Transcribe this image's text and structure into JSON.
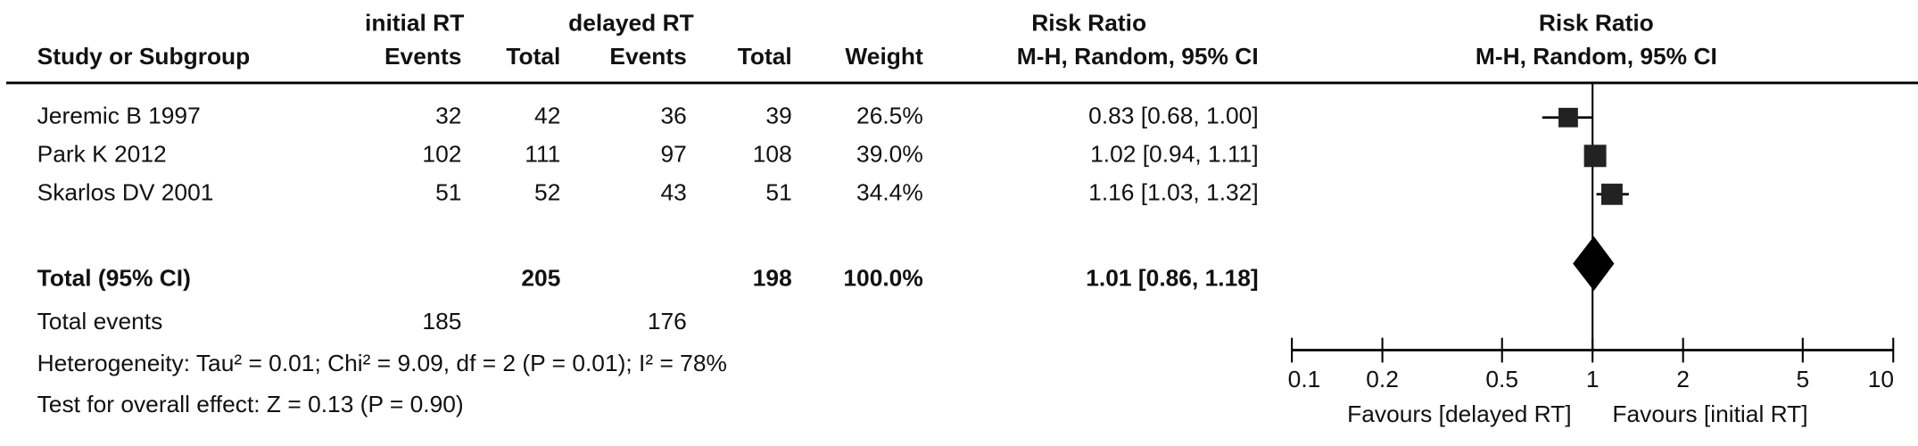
{
  "header": {
    "group1": "initial RT",
    "group2": "delayed RT",
    "effect_col_title": "Risk Ratio",
    "effect_col_method": "M-H, Random, 95% CI",
    "plot_title": "Risk Ratio",
    "plot_method": "M-H, Random, 95% CI",
    "study_col": "Study or Subgroup",
    "events1": "Events",
    "total1": "Total",
    "events2": "Events",
    "total2": "Total",
    "weight": "Weight"
  },
  "studies": [
    {
      "name": "Jeremic B 1997",
      "events1": "32",
      "total1": "42",
      "events2": "36",
      "total2": "39",
      "weight": "26.5%",
      "ci_text": "0.83 [0.68, 1.00]"
    },
    {
      "name": "Park K 2012",
      "events1": "102",
      "total1": "111",
      "events2": "97",
      "total2": "108",
      "weight": "39.0%",
      "ci_text": "1.02 [0.94, 1.11]"
    },
    {
      "name": "Skarlos DV 2001",
      "events1": "51",
      "total1": "52",
      "events2": "43",
      "total2": "51",
      "weight": "34.4%",
      "ci_text": "1.16 [1.03, 1.32]"
    }
  ],
  "total": {
    "label": "Total (95% CI)",
    "total1": "205",
    "total2": "198",
    "weight": "100.0%",
    "ci_text": "1.01 [0.86, 1.18]"
  },
  "total_events": {
    "label": "Total events",
    "events1": "185",
    "events2": "176"
  },
  "heterogeneity": "Heterogeneity: Tau² = 0.01; Chi² = 9.09, df = 2 (P = 0.01); I² = 78%",
  "overall_effect": "Test for overall effect: Z = 0.13 (P = 0.90)",
  "chart_data": {
    "type": "forest",
    "scale": "log",
    "xlim": [
      0.1,
      10
    ],
    "x_ticks": [
      "0.1",
      "0.2",
      "0.5",
      "1",
      "2",
      "5",
      "10"
    ],
    "x_tick_values": [
      0.1,
      0.2,
      0.5,
      1,
      2,
      5,
      10
    ],
    "left_label": "Favours [delayed RT]",
    "right_label": "Favours [initial RT]",
    "points": [
      {
        "study": "Jeremic B 1997",
        "rr": 0.83,
        "lo": 0.68,
        "hi": 1.0,
        "weight": 26.5
      },
      {
        "study": "Park K 2012",
        "rr": 1.02,
        "lo": 0.94,
        "hi": 1.11,
        "weight": 39.0
      },
      {
        "study": "Skarlos DV 2001",
        "rr": 1.16,
        "lo": 1.03,
        "hi": 1.32,
        "weight": 34.4
      }
    ],
    "pooled": {
      "rr": 1.01,
      "lo": 0.86,
      "hi": 1.18
    },
    "colors": {
      "marker": "#222222",
      "diamond": "#000000",
      "line": "#000000"
    }
  }
}
